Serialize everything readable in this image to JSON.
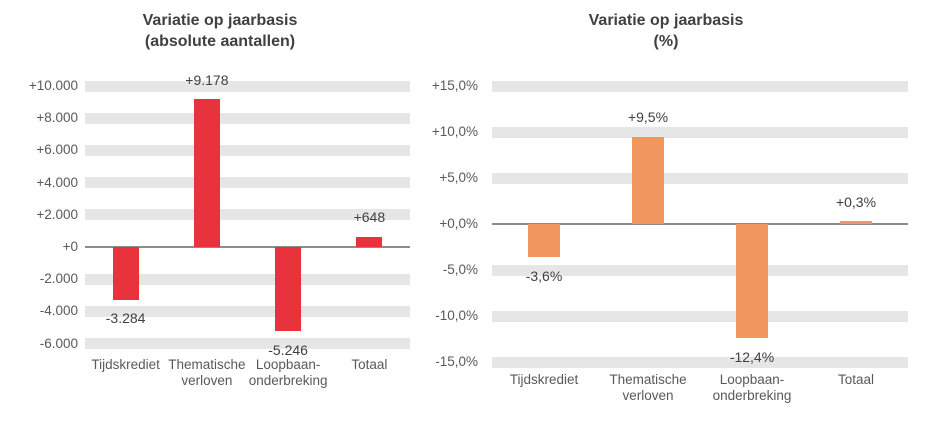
{
  "chart_data": [
    {
      "type": "bar",
      "title_line1": "Variatie op jaarbasis",
      "title_line2": "(absolute aantallen)",
      "categories": [
        "Tijdskrediet",
        "Thematische\nverloven",
        "Loopbaan-\nonderbreking",
        "Totaal"
      ],
      "values": [
        -3284,
        9178,
        -5246,
        648
      ],
      "data_labels": [
        "-3.284",
        "+9.178",
        "-5.246",
        "+648"
      ],
      "ylim": [
        -6000,
        10000
      ],
      "yticks": [
        {
          "value": 10000,
          "label": "+10.000"
        },
        {
          "value": 8000,
          "label": "+8.000"
        },
        {
          "value": 6000,
          "label": "+6.000"
        },
        {
          "value": 4000,
          "label": "+4.000"
        },
        {
          "value": 2000,
          "label": "+2.000"
        },
        {
          "value": 0,
          "label": "+0"
        },
        {
          "value": -2000,
          "label": "-2.000"
        },
        {
          "value": -4000,
          "label": "-4.000"
        },
        {
          "value": -6000,
          "label": "-6.000"
        }
      ],
      "bar_color": "#E8323C",
      "grid_band_color": "#E6E6E6",
      "zero_line_color": "#8C8C8C",
      "axis_text_color": "#595959",
      "data_label_color": "#404040",
      "title_color": "#404040",
      "legend": "none",
      "grid": "horizontal-bands"
    },
    {
      "type": "bar",
      "title_line1": "Variatie op jaarbasis",
      "title_line2": "(%)",
      "categories": [
        "Tijdskrediet",
        "Thematische\nverloven",
        "Loopbaan-\nonderbreking",
        "Totaal"
      ],
      "values": [
        -3.6,
        9.5,
        -12.4,
        0.3
      ],
      "data_labels": [
        "-3,6%",
        "+9,5%",
        "-12,4%",
        "+0,3%"
      ],
      "ylim": [
        -15,
        15
      ],
      "yticks": [
        {
          "value": 15,
          "label": "+15,0%"
        },
        {
          "value": 10,
          "label": "+10,0%"
        },
        {
          "value": 5,
          "label": "+5,0%"
        },
        {
          "value": 0,
          "label": "+0,0%"
        },
        {
          "value": -5,
          "label": "-5,0%"
        },
        {
          "value": -10,
          "label": "-10,0%"
        },
        {
          "value": -15,
          "label": "-15,0%"
        }
      ],
      "bar_color": "#F0975F",
      "grid_band_color": "#E6E6E6",
      "zero_line_color": "#8C8C8C",
      "axis_text_color": "#595959",
      "data_label_color": "#404040",
      "title_color": "#404040",
      "legend": "none",
      "grid": "horizontal-bands"
    }
  ]
}
